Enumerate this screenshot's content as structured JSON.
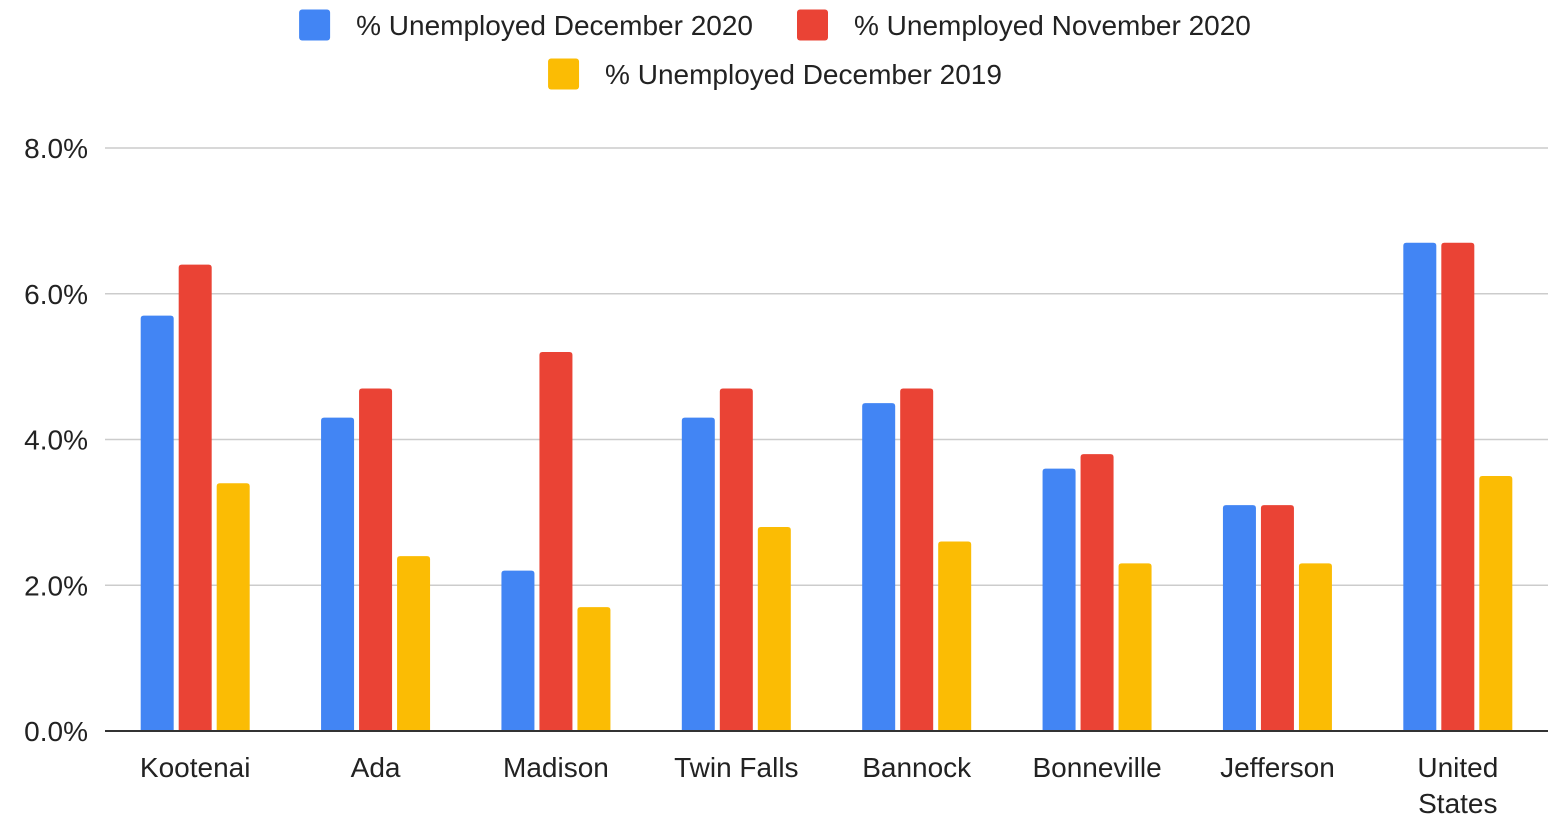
{
  "chart_data": {
    "type": "bar",
    "title": "",
    "xlabel": "",
    "ylabel": "",
    "categories": [
      "Kootenai",
      "Ada",
      "Madison",
      "Twin Falls",
      "Bannock",
      "Bonneville",
      "Jefferson",
      "United States"
    ],
    "series": [
      {
        "name": "% Unemployed December 2020",
        "color": "#4285F4",
        "values": [
          5.7,
          4.3,
          2.2,
          4.3,
          4.5,
          3.6,
          3.1,
          6.7
        ]
      },
      {
        "name": "% Unemployed November 2020",
        "color": "#EA4335",
        "values": [
          6.4,
          4.7,
          5.2,
          4.7,
          4.7,
          3.8,
          3.1,
          6.7
        ]
      },
      {
        "name": "% Unemployed December 2019",
        "color": "#FBBC04",
        "values": [
          3.4,
          2.4,
          1.7,
          2.8,
          2.6,
          2.3,
          2.3,
          3.5
        ]
      }
    ],
    "ylim": [
      0,
      8
    ],
    "yticks": [
      "0.0%",
      "2.0%",
      "4.0%",
      "6.0%",
      "8.0%"
    ],
    "grid": true,
    "legend_position": "top"
  }
}
